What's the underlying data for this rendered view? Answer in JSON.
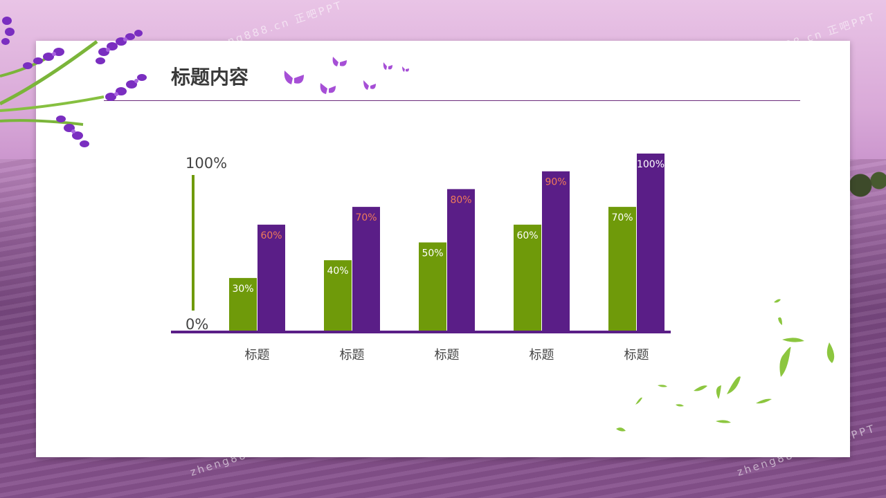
{
  "slide": {
    "title": "标题内容",
    "watermark": "zheng888.cn 正吧PPT"
  },
  "colors": {
    "series1": "#6f9a0a",
    "series2": "#5a1e87",
    "baseline": "#5a1e87",
    "axis_bar": "#6f9a0a",
    "label_series1": "#ffffff",
    "label_series2_default": "#f07a5a",
    "label_series2_last": "#ffffff"
  },
  "chart_data": {
    "type": "bar",
    "categories": [
      "标题",
      "标题",
      "标题",
      "标题",
      "标题"
    ],
    "series": [
      {
        "values": [
          30,
          40,
          50,
          60,
          70
        ],
        "labels": [
          "30%",
          "40%",
          "50%",
          "60%",
          "70%"
        ]
      },
      {
        "values": [
          60,
          70,
          80,
          90,
          100
        ],
        "labels": [
          "60%",
          "70%",
          "80%",
          "90%",
          "100%"
        ]
      }
    ],
    "ylim": [
      0,
      100
    ],
    "ytick_labels": {
      "max": "100%",
      "min": "0%"
    },
    "grid": false,
    "legend": "none"
  }
}
